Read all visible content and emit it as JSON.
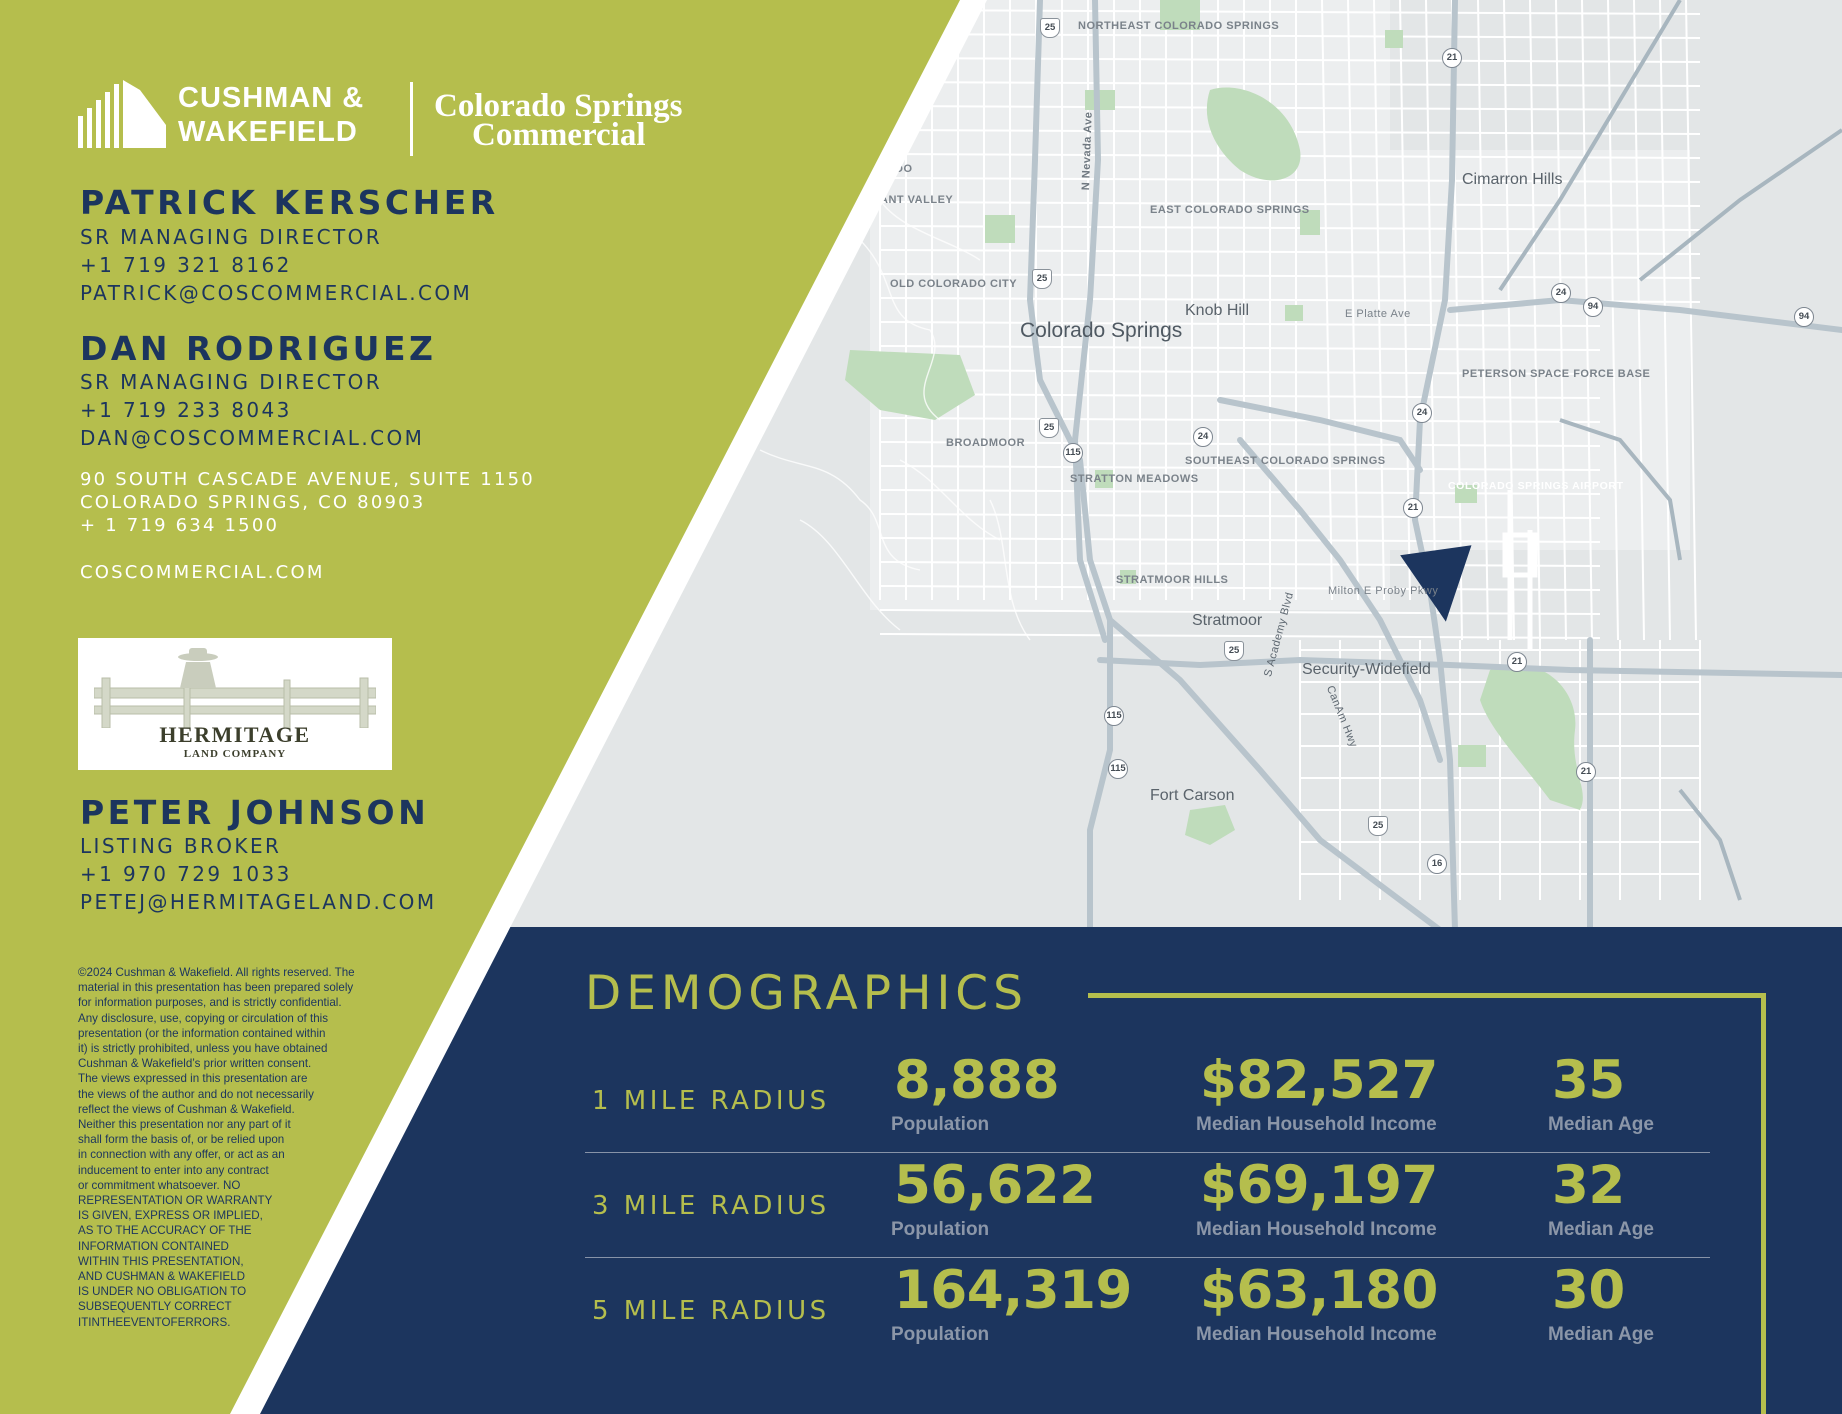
{
  "brand": {
    "company_line1": "CUSHMAN &",
    "company_line2": "WAKEFIELD",
    "partner_line1": "Colorado Springs",
    "partner_line2": "Commercial"
  },
  "contacts": [
    {
      "name": "PATRICK KERSCHER",
      "title": "SR MANAGING DIRECTOR",
      "phone": "+1 719 321 8162",
      "email": "PATRICK@COSCOMMERCIAL.COM"
    },
    {
      "name": "DAN RODRIGUEZ",
      "title": "SR MANAGING DIRECTOR",
      "phone": "+1 719 233 8043",
      "email": "DAN@COSCOMMERCIAL.COM"
    },
    {
      "name": "PETER JOHNSON",
      "title": "LISTING BROKER",
      "phone": "+1 970 729 1033",
      "email": "PETEJ@HERMITAGELAND.COM"
    }
  ],
  "office": {
    "address_line1": "90 SOUTH CASCADE AVENUE, SUITE 1150",
    "address_line2": "COLORADO SPRINGS, CO 80903",
    "phone": "+ 1 719 634 1500",
    "website": "COSCOMMERCIAL.COM"
  },
  "hermitage": {
    "name": "HERMITAGE",
    "subtitle": "LAND COMPANY"
  },
  "disclaimer_lines": [
    "©2024 Cushman & Wakefield. All rights reserved.  The",
    "material in this presentation has been prepared solely",
    "for information purposes, and is strictly confidential.",
    "Any disclosure, use, copying or circulation of this",
    "presentation (or the information contained within",
    "it) is strictly prohibited, unless you have obtained",
    "Cushman & Wakefield’s prior written consent.",
    "The views expressed in this presentation are",
    "the views of the author and do not necessarily",
    "reflect the views of Cushman & Wakefield.",
    "Neither this presentation nor any part of it",
    "shall form the basis of, or be relied upon",
    "in connection with any offer, or act as an",
    "inducement to enter into any contract",
    "or commitment whatsoever. NO",
    "REPRESENTATION OR WARRANTY",
    "IS GIVEN, EXPRESS OR IMPLIED,",
    "AS TO THE ACCURACY OF THE",
    "INFORMATION CONTAINED",
    "WITHIN THIS PRESENTATION,",
    "AND CUSHMAN & WAKEFIELD",
    "IS UNDER NO OBLIGATION TO",
    "SUBSEQUENTLY CORRECT",
    "ITINTHEEVENTOFERRORS."
  ],
  "map": {
    "place_labels": {
      "northeast_cs": "NORTHEAST COLORADO SPRINGS",
      "cimarron_hills": "Cimarron Hills",
      "pleasant_valley": "ANT VALLEY",
      "n_nevada": "N Nevada Ave",
      "east_cs": "EAST COLORADO SPRINGS",
      "old_cs": "OLD COLORADO CITY",
      "colorado_springs": "Colorado Springs",
      "knob_hill": "Knob Hill",
      "e_platte": "E Platte Ave",
      "peterson": "PETERSON SPACE FORCE BASE",
      "broadmoor": "BROADMOOR",
      "southeast_cs": "SOUTHEAST COLORADO SPRINGS",
      "stratton": "STRATTON MEADOWS",
      "airport": "COLORADO SPRINGS AIRPORT",
      "stratmoor_hills": "STRATMOOR HILLS",
      "milton": "Milton E Proby Pkwy",
      "stratmoor": "Stratmoor",
      "s_academy": "S Academy Blvd",
      "security": "Security-Widefield",
      "canam": "CanAm Hwy",
      "fort_carson": "Fort Carson",
      "do": "DO"
    },
    "shields": [
      "25",
      "25",
      "25",
      "25",
      "25",
      "21",
      "21",
      "21",
      "21",
      "24",
      "24",
      "24",
      "94",
      "94",
      "115",
      "115",
      "115",
      "16"
    ]
  },
  "demographics": {
    "title": "DEMOGRAPHICS",
    "rows": [
      {
        "radius": "1 MILE RADIUS",
        "population": "8,888",
        "population_label": "Population",
        "income": "$82,527",
        "income_label": "Median Household Income",
        "age": "35",
        "age_label": "Median Age"
      },
      {
        "radius": "3 MILE RADIUS",
        "population": "56,622",
        "population_label": "Population",
        "income": "$69,197",
        "income_label": "Median Household Income",
        "age": "32",
        "age_label": "Median Age"
      },
      {
        "radius": "5 MILE RADIUS",
        "population": "164,319",
        "population_label": "Population",
        "income": "$63,180",
        "income_label": "Median Household Income",
        "age": "30",
        "age_label": "Median Age"
      }
    ]
  },
  "colors": {
    "green": "#b5be4d",
    "navy": "#1c355e",
    "map_bg": "#e8eaeb"
  }
}
